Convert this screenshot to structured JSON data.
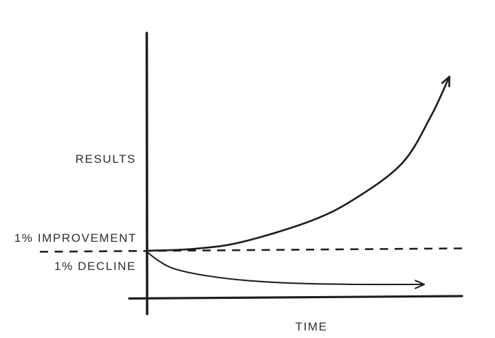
{
  "figure": {
    "background": "#ffffff",
    "ink_color": "#1e1e1e",
    "text_color": "#2e2e2e"
  },
  "labels": {
    "y_axis": "RESULTS",
    "x_axis": "TIME",
    "baseline_above": "1% IMPROVEMENT",
    "baseline_below": "1% DECLINE"
  },
  "chart_data": {
    "type": "line",
    "title": "",
    "xlabel": "TIME",
    "ylabel": "RESULTS",
    "grid": false,
    "legend": false,
    "x_range_normalized": [
      0,
      1
    ],
    "ylim_relative_to_baseline": [
      -0.49,
      2.26
    ],
    "baseline": {
      "value": 0,
      "style": "dashed",
      "label_above": "1% IMPROVEMENT",
      "label_below": "1% DECLINE"
    },
    "series": [
      {
        "name": "1% IMPROVEMENT",
        "shape": "exponential growth (compounding gains)",
        "arrow_end": true,
        "points": [
          [
            0,
            0
          ],
          [
            0.15,
            0.02
          ],
          [
            0.3,
            0.09
          ],
          [
            0.52,
            0.31
          ],
          [
            0.66,
            0.54
          ],
          [
            0.81,
            0.91
          ],
          [
            0.9,
            1.39
          ],
          [
            0.96,
            1.81
          ]
        ]
      },
      {
        "name": "1% DECLINE",
        "shape": "exponential decay flattening to plateau",
        "arrow_end": true,
        "points": [
          [
            0,
            -0.01
          ],
          [
            0.04,
            -0.11
          ],
          [
            0.09,
            -0.19
          ],
          [
            0.19,
            -0.26
          ],
          [
            0.32,
            -0.31
          ],
          [
            0.49,
            -0.34
          ],
          [
            0.67,
            -0.35
          ],
          [
            0.88,
            -0.35
          ]
        ]
      }
    ]
  }
}
